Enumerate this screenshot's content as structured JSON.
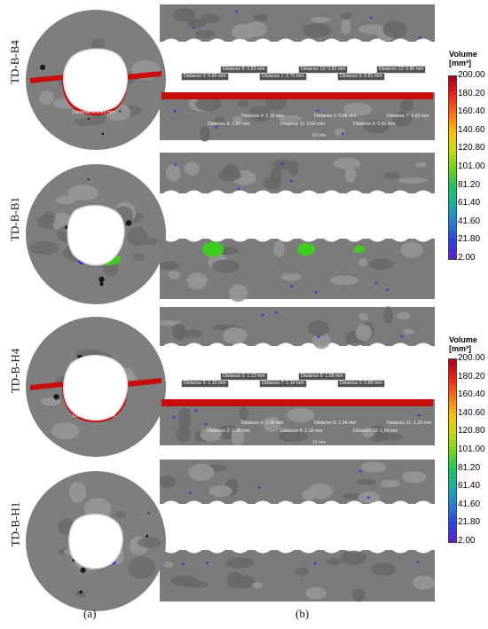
{
  "rows": [
    {
      "label": "TD-B-B4",
      "circle_label": "Distance 5: 0.81 mm",
      "has_measure_strip": true,
      "hole_color": "#c80d0d",
      "top_labels": [
        "Distance 3: 0.60 mm",
        "Distance 1: 0.75 mm",
        "Distance 5: 0.81 mm",
        "Distance 8: 0.63 mm",
        "Distance 10: 0.83 mm",
        "Distance 12: 0.80 mm"
      ],
      "bottom_labels": [
        "Distance 4: 1.15 mm",
        "Distance 2: 0.86 mm",
        "Distance 7: 0.82 mm",
        "Distance 6: 1.27 mm",
        "Distance 11: 0.62 mm",
        "Distance 9: 0.81 mm"
      ],
      "scale_text": "10 mm"
    },
    {
      "label": "TD-B-B1",
      "circle_label": "",
      "has_measure_strip": false,
      "hole_color": "#3ecc1e",
      "top_labels": [],
      "bottom_labels": [],
      "scale_text": ""
    },
    {
      "label": "TD-B-H4",
      "circle_label": "Distance 7: 1.14 mm",
      "has_measure_strip": true,
      "hole_color": "#c80d0d",
      "top_labels": [
        "Distance 3: 1.10 mm",
        "Distance 7: 1.14 mm",
        "Distance 1: 0.86 mm",
        "Distance 5: 1.13 mm",
        "Distance 9: 1.09 mm"
      ],
      "bottom_labels": [
        "Distance 4: 1.39 mm",
        "Distance 8: 1.34 mm",
        "Distance 11: 1.23 mm",
        "Distance 2: 1.39 mm",
        "Distance 6: 1.18 mm",
        "Distance 10: 1.54 mm"
      ],
      "scale_text": "10 mm"
    },
    {
      "label": "TD-B-H1",
      "circle_label": "",
      "has_measure_strip": false,
      "hole_color": "#5a2fd6",
      "top_labels": [],
      "bottom_labels": [],
      "scale_text": ""
    }
  ],
  "legend": {
    "title_line1": "Volume",
    "title_line2": "[mm³]",
    "ticks": [
      "200.00",
      "180.20",
      "160.40",
      "140.60",
      "120.80",
      "101.00",
      "81.20",
      "61.40",
      "41.60",
      "21.80",
      "2.00"
    ],
    "colors": [
      "#a4001d",
      "#e8241a",
      "#f86d16",
      "#f9bb10",
      "#cdd91a",
      "#73d21e",
      "#22c35f",
      "#17b0a7",
      "#2a7dd3",
      "#2a44dd",
      "#5a1fc8"
    ]
  },
  "captions": {
    "a": "(a)",
    "b": "(b)"
  }
}
